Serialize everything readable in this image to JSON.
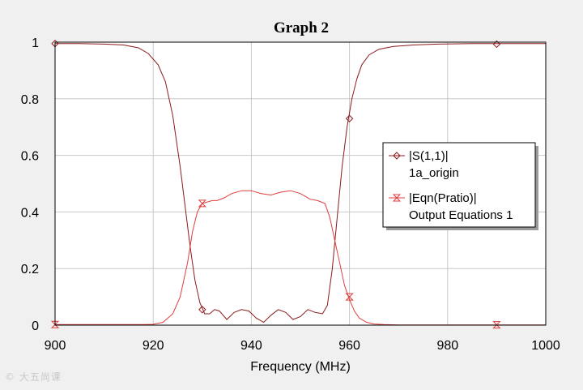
{
  "chart_data": {
    "type": "line",
    "title": "Graph 2",
    "xlabel": "Frequency (MHz)",
    "ylabel": "",
    "xlim": [
      900,
      1000
    ],
    "ylim": [
      0,
      1
    ],
    "x_ticks": [
      "900",
      "920",
      "940",
      "960",
      "980",
      "1000"
    ],
    "y_ticks": [
      "0",
      "0.2",
      "0.4",
      "0.6",
      "0.8",
      "1"
    ],
    "grid": true,
    "legend_position": "right",
    "series": [
      {
        "name": "|S(1,1)|",
        "source": "1a_origin",
        "color": "#8b1a1a",
        "marker": "diamond",
        "x": [
          900,
          905,
          910,
          914,
          917,
          919,
          921,
          922.5,
          924,
          925.5,
          926.5,
          927.5,
          928.5,
          929.5,
          930.5,
          931.5,
          932.5,
          933.5,
          935,
          936.5,
          938,
          939.5,
          941,
          942.5,
          944,
          945.5,
          947,
          948.5,
          950,
          951.5,
          953,
          954.5,
          955.5,
          956.5,
          957.5,
          958.5,
          959.5,
          960.5,
          961.5,
          962.5,
          964,
          966,
          969,
          973,
          978,
          985,
          992,
          1000
        ],
        "y": [
          0.995,
          0.995,
          0.993,
          0.99,
          0.98,
          0.96,
          0.92,
          0.86,
          0.74,
          0.56,
          0.42,
          0.28,
          0.16,
          0.08,
          0.04,
          0.04,
          0.055,
          0.05,
          0.02,
          0.045,
          0.055,
          0.05,
          0.025,
          0.01,
          0.035,
          0.055,
          0.045,
          0.02,
          0.03,
          0.055,
          0.045,
          0.04,
          0.07,
          0.2,
          0.38,
          0.56,
          0.7,
          0.8,
          0.87,
          0.92,
          0.955,
          0.975,
          0.985,
          0.99,
          0.993,
          0.995,
          0.995,
          0.995
        ],
        "marker_x": [
          900,
          930,
          960,
          990
        ],
        "marker_y": [
          0.995,
          0.055,
          0.73,
          0.993
        ]
      },
      {
        "name": "|Eqn(Pratio)|",
        "source": "Output Equations 1",
        "color": "#e03c3c",
        "marker": "hourglass",
        "x": [
          900,
          910,
          918,
          920,
          922,
          924,
          925.5,
          927,
          928,
          929,
          930,
          931,
          932,
          933,
          934.5,
          936,
          938,
          940,
          942,
          944,
          946,
          948,
          950,
          952,
          953.5,
          955,
          956,
          957,
          958,
          959,
          960,
          961,
          962,
          963.5,
          965,
          967,
          970,
          980,
          990,
          1000
        ],
        "y": [
          0.002,
          0.002,
          0.002,
          0.003,
          0.01,
          0.04,
          0.1,
          0.22,
          0.33,
          0.4,
          0.43,
          0.435,
          0.44,
          0.44,
          0.45,
          0.465,
          0.475,
          0.475,
          0.465,
          0.46,
          0.47,
          0.475,
          0.465,
          0.445,
          0.44,
          0.43,
          0.38,
          0.3,
          0.22,
          0.14,
          0.09,
          0.05,
          0.025,
          0.01,
          0.004,
          0.002,
          0.001,
          0.001,
          0.001,
          0.001
        ],
        "marker_x": [
          900,
          930,
          960,
          990
        ],
        "marker_y": [
          0.002,
          0.43,
          0.1,
          0.001
        ]
      }
    ]
  },
  "watermark": "© 大五尚课"
}
